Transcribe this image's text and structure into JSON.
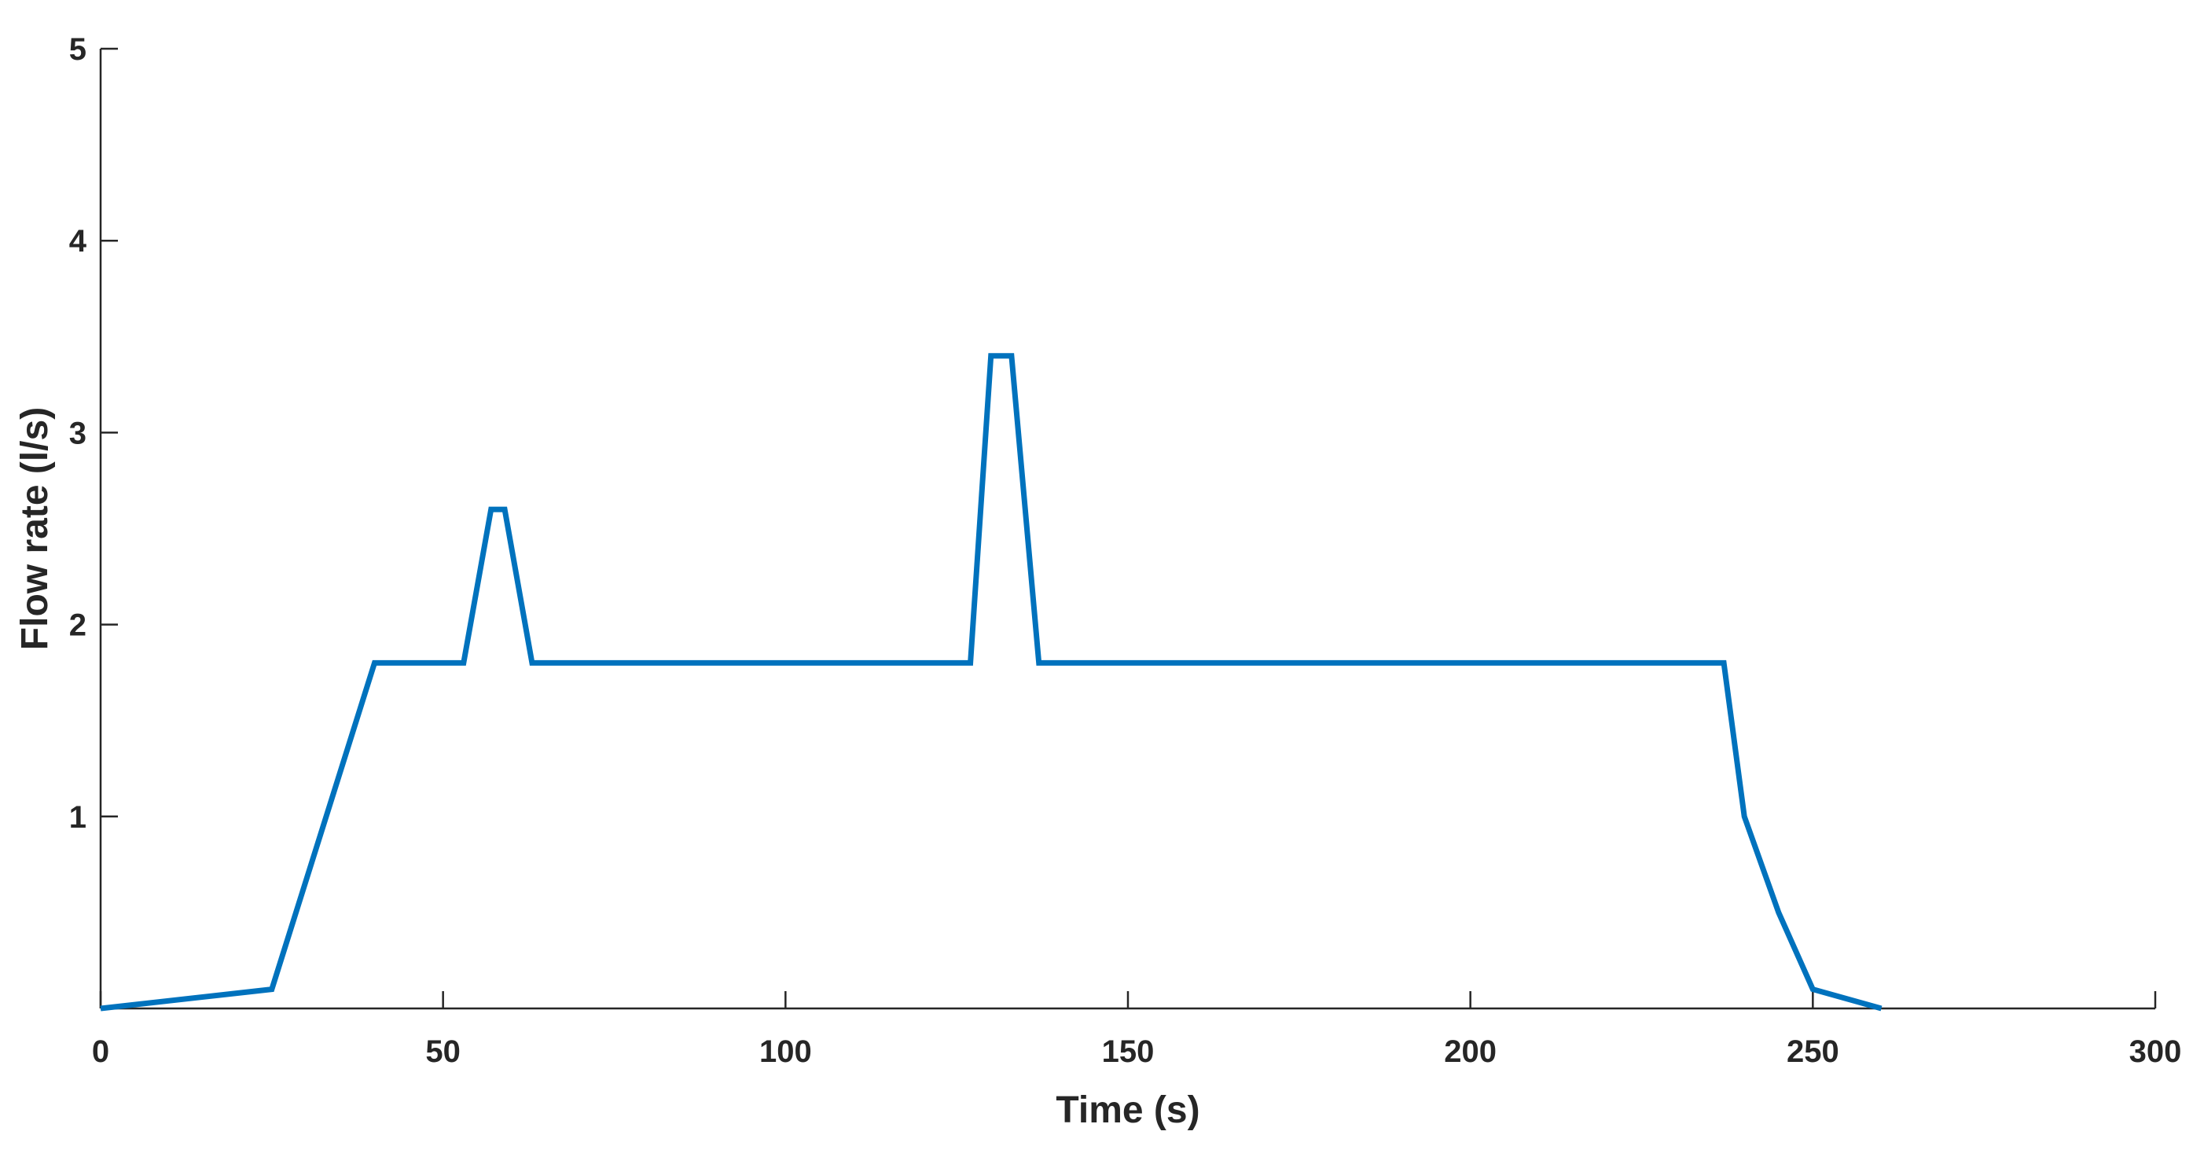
{
  "chart_data": {
    "type": "line",
    "title": "",
    "xlabel": "Time (s)",
    "ylabel": "Flow rate (l/s)",
    "xlim": [
      0,
      300
    ],
    "ylim": [
      0,
      5
    ],
    "xticks": [
      0,
      50,
      100,
      150,
      200,
      250,
      300
    ],
    "xtick_labels": [
      "0",
      "50",
      "100",
      "150",
      "200",
      "250",
      "300"
    ],
    "yticks": [
      1,
      2,
      3,
      4,
      5
    ],
    "ytick_labels": [
      "1",
      "2",
      "3",
      "4",
      "5"
    ],
    "grid": false,
    "legend": "none",
    "series": [
      {
        "color": "#0072BD",
        "x": [
          0,
          25,
          40,
          53,
          57,
          59,
          63,
          127,
          130,
          133,
          137,
          237,
          240,
          245,
          250,
          260
        ],
        "y": [
          0,
          0.1,
          1.8,
          1.8,
          2.6,
          2.6,
          1.8,
          1.8,
          3.4,
          3.4,
          1.8,
          1.8,
          1.0,
          0.5,
          0.1,
          0
        ]
      }
    ]
  }
}
